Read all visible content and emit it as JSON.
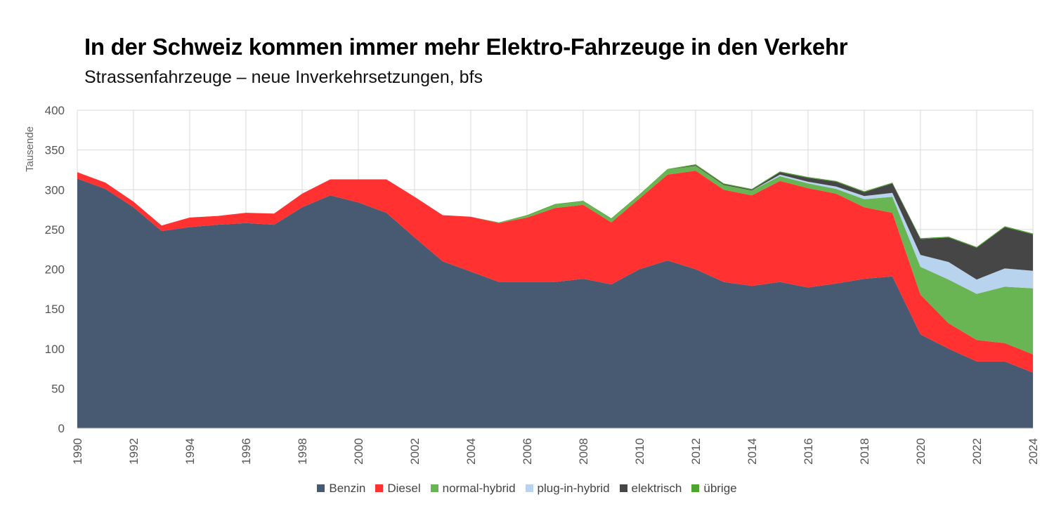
{
  "title": "In der Schweiz kommen immer mehr Elektro-Fahrzeuge in den Verkehr",
  "subtitle": "Strassenfahrzeuge – neue Inverkehrsetzungen, bfs",
  "chart_data": {
    "type": "area",
    "stacked": true,
    "ylabel": "Tausende",
    "xlabel": "",
    "ylim": [
      0,
      400
    ],
    "yticks": [
      0,
      50,
      100,
      150,
      200,
      250,
      300,
      350,
      400
    ],
    "x": [
      1990,
      1991,
      1992,
      1993,
      1994,
      1995,
      1996,
      1997,
      1998,
      1999,
      2000,
      2001,
      2002,
      2003,
      2004,
      2005,
      2006,
      2007,
      2008,
      2009,
      2010,
      2011,
      2012,
      2013,
      2014,
      2015,
      2016,
      2017,
      2018,
      2019,
      2020,
      2021,
      2022,
      2023,
      2024
    ],
    "xticks": [
      1990,
      1992,
      1994,
      1996,
      1998,
      2000,
      2002,
      2004,
      2006,
      2008,
      2010,
      2012,
      2014,
      2016,
      2018,
      2020,
      2022,
      2024
    ],
    "grid": true,
    "legend_position": "bottom",
    "series": [
      {
        "name": "Benzin",
        "color": "#475a71",
        "values": [
          314,
          301,
          278,
          248,
          253,
          256,
          258,
          256,
          278,
          293,
          284,
          271,
          240,
          210,
          197,
          184,
          184,
          184,
          188,
          181,
          200,
          211,
          200,
          184,
          179,
          184,
          177,
          182,
          188,
          191,
          118,
          100,
          84,
          84,
          70
        ]
      },
      {
        "name": "Diesel",
        "color": "#ff3131",
        "values": [
          8,
          8,
          7,
          7,
          12,
          11,
          13,
          14,
          17,
          20,
          29,
          42,
          51,
          58,
          69,
          74,
          81,
          93,
          93,
          78,
          89,
          108,
          124,
          116,
          114,
          127,
          125,
          113,
          90,
          80,
          50,
          32,
          27,
          23,
          23
        ]
      },
      {
        "name": "normal-hybrid",
        "color": "#6ab553",
        "values": [
          0,
          0,
          0,
          0,
          0,
          0,
          0,
          0,
          0,
          0,
          0,
          0,
          0,
          0,
          0,
          1,
          2,
          4,
          4,
          4,
          4,
          6,
          6,
          6,
          6,
          6,
          6,
          6,
          10,
          20,
          35,
          55,
          58,
          71,
          83
        ]
      },
      {
        "name": "plug-in-hybrid",
        "color": "#b7d3ee",
        "values": [
          0,
          0,
          0,
          0,
          0,
          0,
          0,
          0,
          0,
          0,
          0,
          0,
          0,
          0,
          0,
          0,
          0,
          0,
          0,
          0,
          0,
          0,
          0,
          0,
          0,
          2,
          2,
          3,
          4,
          5,
          15,
          22,
          18,
          23,
          22
        ]
      },
      {
        "name": "elektrisch",
        "color": "#464646",
        "values": [
          0,
          0,
          0,
          0,
          0,
          0,
          0,
          0,
          0,
          0,
          0,
          0,
          0,
          0,
          0,
          0,
          0,
          0,
          0,
          0,
          0,
          0,
          1,
          1,
          1,
          3,
          5,
          6,
          5,
          12,
          20,
          31,
          40,
          52,
          46
        ]
      },
      {
        "name": "übrige",
        "color": "#4ea52e",
        "values": [
          0,
          0,
          0,
          0,
          0,
          0,
          0,
          0,
          0,
          0,
          0,
          0,
          0,
          0,
          0,
          0,
          1,
          1,
          1,
          1,
          1,
          1,
          1,
          1,
          1,
          1,
          1,
          1,
          1,
          1,
          1,
          1,
          1,
          1,
          1
        ]
      }
    ]
  }
}
